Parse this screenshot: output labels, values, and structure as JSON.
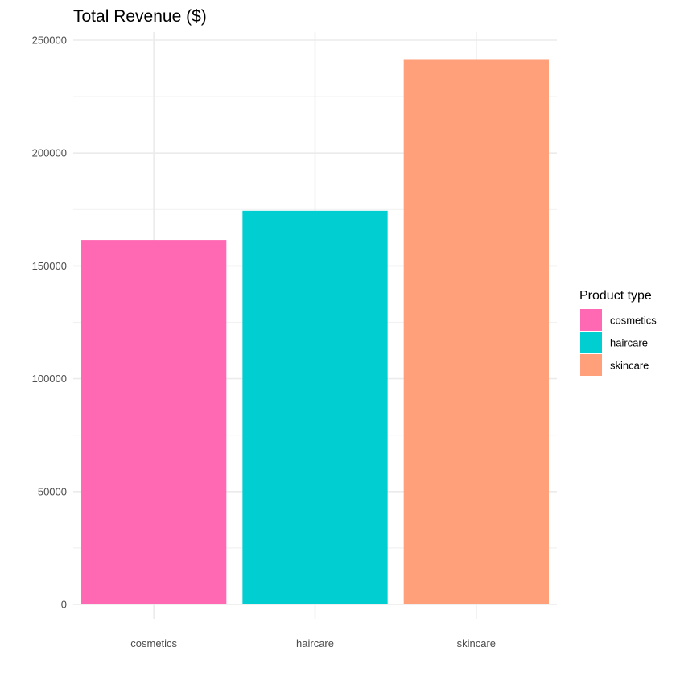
{
  "chart_data": {
    "type": "bar",
    "title": "Total Revenue ($)",
    "xlabel": "",
    "ylabel": "",
    "categories": [
      "cosmetics",
      "haircare",
      "skincare"
    ],
    "values": [
      161521,
      174455,
      241628
    ],
    "colors": [
      "#FF69B4",
      "#00CED1",
      "#FFA07A"
    ],
    "ylim": [
      0,
      250000
    ],
    "yticks": [
      0,
      50000,
      100000,
      150000,
      200000,
      250000
    ],
    "ytick_labels": [
      "0",
      "50000",
      "100000",
      "150000",
      "200000",
      "250000"
    ],
    "grid": true,
    "legend": {
      "title": "Product type",
      "position": "right",
      "entries": [
        "cosmetics",
        "haircare",
        "skincare"
      ]
    }
  }
}
